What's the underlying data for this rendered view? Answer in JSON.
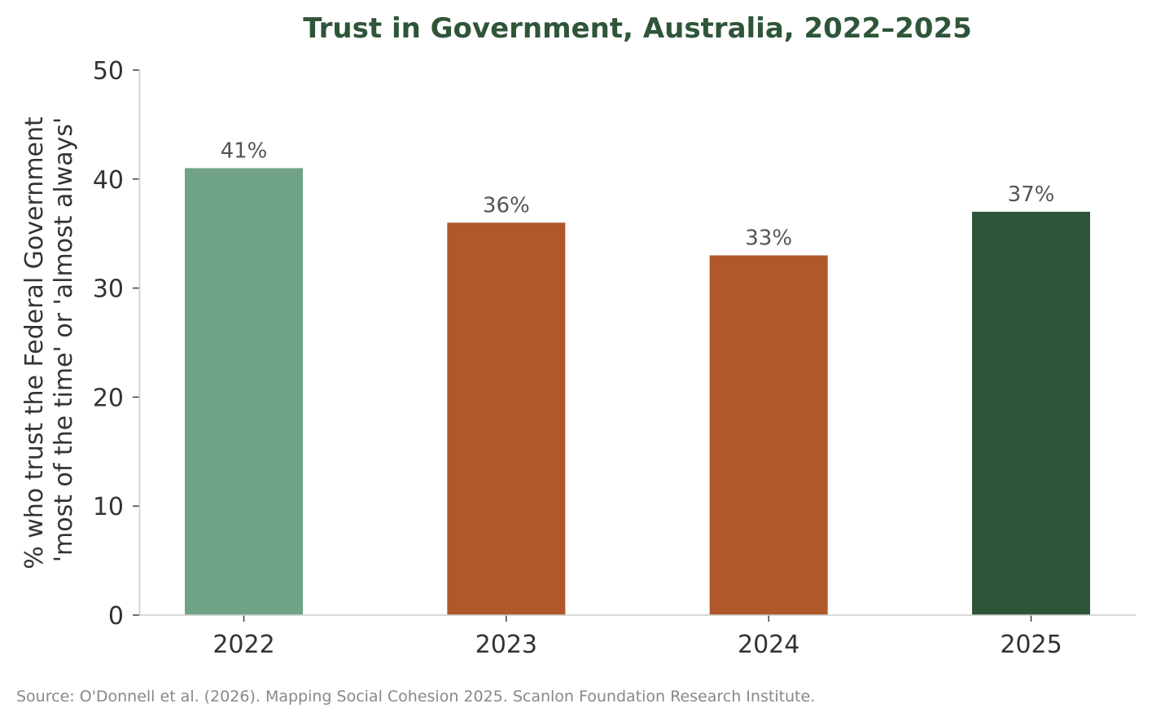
{
  "chart_data": {
    "type": "bar",
    "title": "Trust in Government, Australia, 2022–2025",
    "xlabel": "",
    "ylabel_lines": [
      "% who trust the Federal Government",
      "'most of the time' or 'almost always'"
    ],
    "categories": [
      "2022",
      "2023",
      "2024",
      "2025"
    ],
    "values": [
      41,
      36,
      33,
      37
    ],
    "data_labels": [
      "41%",
      "36%",
      "33%",
      "37%"
    ],
    "bar_colors": [
      "#70a288",
      "#b0572b",
      "#b0572b",
      "#2f5539"
    ],
    "ylim": [
      0,
      50
    ],
    "yticks": [
      0,
      10,
      20,
      30,
      40,
      50
    ],
    "ytick_labels": [
      "0",
      "10",
      "20",
      "30",
      "40",
      "50"
    ],
    "grid": false,
    "legend": "none"
  },
  "source_note": "Source: O'Donnell et al. (2026). Mapping Social Cohesion 2025. Scanlon Foundation Research Institute.",
  "colors": {
    "title": "#2f5539",
    "axis_text": "#333333",
    "data_label": "#555555",
    "spine": "#cccccc",
    "source": "#888888"
  }
}
